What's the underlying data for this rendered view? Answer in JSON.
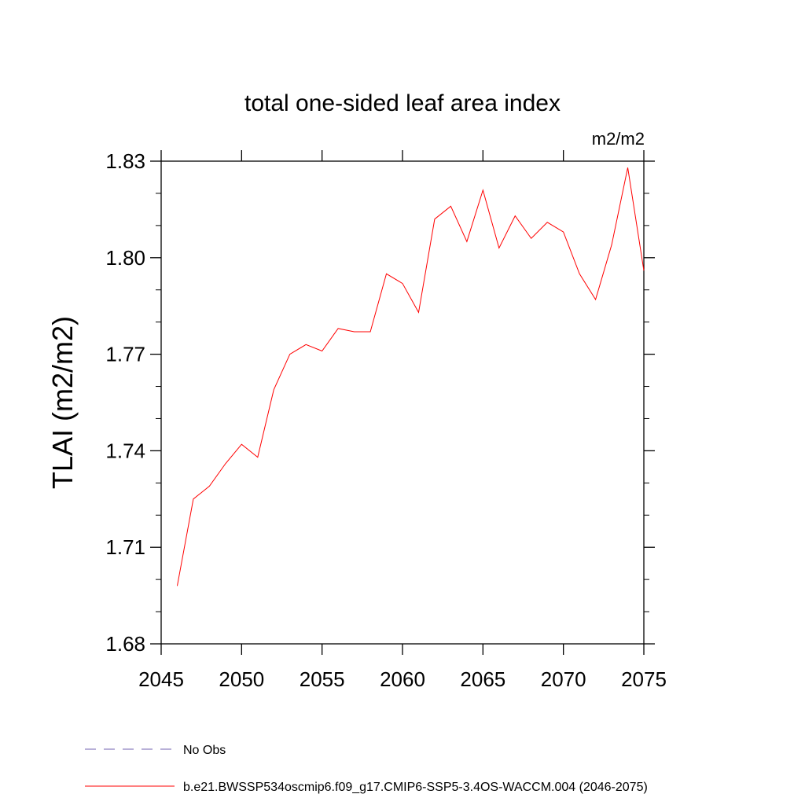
{
  "chart_data": {
    "type": "line",
    "title": "total one-sided leaf area index",
    "units": "m2/m2",
    "ylabel": "TLAI  (m2/m2)",
    "xlabel": "",
    "xlim": [
      2045,
      2075
    ],
    "ylim": [
      1.68,
      1.83
    ],
    "x_ticks": [
      2045,
      2050,
      2055,
      2060,
      2065,
      2070,
      2075
    ],
    "x_tick_labels": [
      "2045",
      "2050",
      "2055",
      "2060",
      "2065",
      "2070",
      "2075"
    ],
    "y_ticks": [
      1.68,
      1.71,
      1.74,
      1.77,
      1.8,
      1.83
    ],
    "y_tick_labels": [
      "1.68",
      "1.71",
      "1.74",
      "1.77",
      "1.80",
      "1.83"
    ],
    "grid": false,
    "legend_position": "bottom-left",
    "series": [
      {
        "name": "No Obs",
        "color": "#7060b0",
        "dash": "dashed",
        "x": [],
        "values": []
      },
      {
        "name": "b.e21.BWSSP534oscmip6.f09_g17.CMIP6-SSP5-3.4OS-WACCM.004 (2046-2075)",
        "color": "#ff0000",
        "dash": "solid",
        "x": [
          2046,
          2047,
          2048,
          2049,
          2050,
          2051,
          2052,
          2053,
          2054,
          2055,
          2056,
          2057,
          2058,
          2059,
          2060,
          2061,
          2062,
          2063,
          2064,
          2065,
          2066,
          2067,
          2068,
          2069,
          2070,
          2071,
          2072,
          2073,
          2074,
          2075
        ],
        "values": [
          1.698,
          1.725,
          1.729,
          1.736,
          1.742,
          1.738,
          1.759,
          1.77,
          1.773,
          1.771,
          1.778,
          1.777,
          1.777,
          1.795,
          1.792,
          1.783,
          1.812,
          1.816,
          1.805,
          1.821,
          1.803,
          1.813,
          1.806,
          1.811,
          1.808,
          1.795,
          1.787,
          1.804,
          1.828,
          1.796
        ]
      }
    ]
  }
}
